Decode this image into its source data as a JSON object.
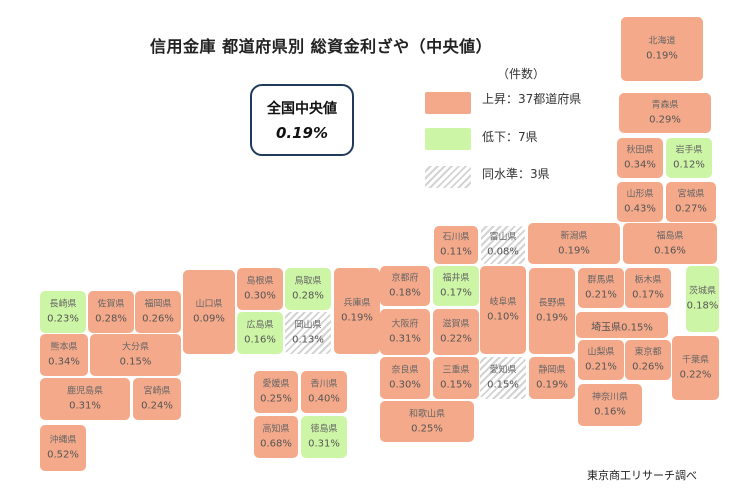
{
  "title": "信用金庫 都道府県別  総資金利ざや（中央値）",
  "summary": {
    "label": "全国中央値",
    "value": "0.19%"
  },
  "legend": {
    "unit": "（件数）",
    "items": [
      {
        "kind": "up",
        "label": "上昇：37都道府県",
        "color": "#f4a98a"
      },
      {
        "kind": "down",
        "label": "低下：7県",
        "color": "#cdf5a6"
      },
      {
        "kind": "same",
        "label": "同水準：3県",
        "color": "#d3d3d3"
      }
    ]
  },
  "prefectures": [
    {
      "name": "北海道",
      "rate": "0.19%",
      "status": "up"
    },
    {
      "name": "青森県",
      "rate": "0.29%",
      "status": "up"
    },
    {
      "name": "秋田県",
      "rate": "0.34%",
      "status": "up"
    },
    {
      "name": "岩手県",
      "rate": "0.12%",
      "status": "down"
    },
    {
      "name": "山形県",
      "rate": "0.43%",
      "status": "up"
    },
    {
      "name": "宮城県",
      "rate": "0.27%",
      "status": "up"
    },
    {
      "name": "石川県",
      "rate": "0.11%",
      "status": "up"
    },
    {
      "name": "富山県",
      "rate": "0.08%",
      "status": "same"
    },
    {
      "name": "新潟県",
      "rate": "0.19%",
      "status": "up"
    },
    {
      "name": "福島県",
      "rate": "0.16%",
      "status": "up"
    },
    {
      "name": "京都府",
      "rate": "0.18%",
      "status": "up"
    },
    {
      "name": "福井県",
      "rate": "0.17%",
      "status": "down"
    },
    {
      "name": "岐阜県",
      "rate": "0.10%",
      "status": "up"
    },
    {
      "name": "長野県",
      "rate": "0.19%",
      "status": "up"
    },
    {
      "name": "群馬県",
      "rate": "0.21%",
      "status": "up"
    },
    {
      "name": "栃木県",
      "rate": "0.17%",
      "status": "up"
    },
    {
      "name": "茨城県",
      "rate": "0.18%",
      "status": "down"
    },
    {
      "name": "島根県",
      "rate": "0.30%",
      "status": "up"
    },
    {
      "name": "鳥取県",
      "rate": "0.28%",
      "status": "down"
    },
    {
      "name": "山口県",
      "rate": "0.09%",
      "status": "up"
    },
    {
      "name": "兵庫県",
      "rate": "0.19%",
      "status": "up"
    },
    {
      "name": "大阪府",
      "rate": "0.31%",
      "status": "up"
    },
    {
      "name": "滋賀県",
      "rate": "0.22%",
      "status": "up"
    },
    {
      "name": "埼玉県",
      "rate": "0.15%",
      "status": "up"
    },
    {
      "name": "広島県",
      "rate": "0.16%",
      "status": "down"
    },
    {
      "name": "岡山県",
      "rate": "0.13%",
      "status": "same"
    },
    {
      "name": "長崎県",
      "rate": "0.23%",
      "status": "down"
    },
    {
      "name": "佐賀県",
      "rate": "0.28%",
      "status": "up"
    },
    {
      "name": "福岡県",
      "rate": "0.26%",
      "status": "up"
    },
    {
      "name": "熊本県",
      "rate": "0.34%",
      "status": "up"
    },
    {
      "name": "大分県",
      "rate": "0.15%",
      "status": "up"
    },
    {
      "name": "奈良県",
      "rate": "0.30%",
      "status": "up"
    },
    {
      "name": "三重県",
      "rate": "0.15%",
      "status": "up"
    },
    {
      "name": "愛知県",
      "rate": "0.15%",
      "status": "same"
    },
    {
      "name": "静岡県",
      "rate": "0.19%",
      "status": "up"
    },
    {
      "name": "山梨県",
      "rate": "0.21%",
      "status": "up"
    },
    {
      "name": "東京都",
      "rate": "0.26%",
      "status": "up"
    },
    {
      "name": "千葉県",
      "rate": "0.22%",
      "status": "up"
    },
    {
      "name": "鹿児島県",
      "rate": "0.31%",
      "status": "up"
    },
    {
      "name": "宮崎県",
      "rate": "0.24%",
      "status": "up"
    },
    {
      "name": "愛媛県",
      "rate": "0.25%",
      "status": "up"
    },
    {
      "name": "香川県",
      "rate": "0.40%",
      "status": "up"
    },
    {
      "name": "高知県",
      "rate": "0.68%",
      "status": "up"
    },
    {
      "name": "徳島県",
      "rate": "0.31%",
      "status": "down"
    },
    {
      "name": "和歌山県",
      "rate": "0.25%",
      "status": "up"
    },
    {
      "name": "神奈川県",
      "rate": "0.16%",
      "status": "up"
    },
    {
      "name": "沖縄県",
      "rate": "0.52%",
      "status": "up"
    }
  ],
  "source": "東京商工リサーチ調べ"
}
